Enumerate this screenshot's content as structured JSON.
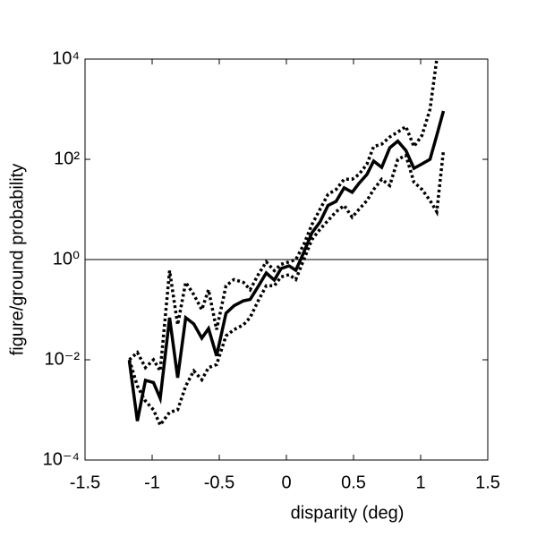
{
  "chart_data": {
    "type": "line",
    "xlabel": "disparity (deg)",
    "ylabel": "figure/ground probability",
    "x": [
      -1.17,
      -1.11,
      -1.05,
      -0.99,
      -0.94,
      -0.87,
      -0.81,
      -0.75,
      -0.69,
      -0.63,
      -0.58,
      -0.52,
      -0.45,
      -0.39,
      -0.32,
      -0.27,
      -0.21,
      -0.15,
      -0.09,
      -0.04,
      0.02,
      0.07,
      0.13,
      0.19,
      0.25,
      0.31,
      0.37,
      0.43,
      0.49,
      0.54,
      0.6,
      0.65,
      0.71,
      0.77,
      0.83,
      0.89,
      0.95,
      1.01,
      1.07,
      1.12,
      1.17
    ],
    "series": [
      {
        "color": "#000000",
        "style": "solid",
        "values": [
          0.0095,
          0.0006,
          0.0039,
          0.0035,
          0.0017,
          0.069,
          0.0044,
          0.069,
          0.052,
          0.027,
          0.042,
          0.012,
          0.085,
          0.12,
          0.15,
          0.16,
          0.29,
          0.54,
          0.39,
          0.66,
          0.75,
          0.61,
          1.4,
          3.4,
          5.6,
          12,
          14.5,
          27,
          22,
          33,
          50,
          92,
          69,
          170,
          230,
          150,
          66,
          81,
          100,
          300,
          920
        ]
      },
      {
        "color": "#000000",
        "style": "dotted",
        "values": [
          0.01,
          0.014,
          0.007,
          0.01,
          0.006,
          0.6,
          0.05,
          0.35,
          0.2,
          0.1,
          0.25,
          0.04,
          0.3,
          0.4,
          0.35,
          0.25,
          0.5,
          0.9,
          0.6,
          0.8,
          0.9,
          1.0,
          2,
          5,
          10,
          20,
          25,
          40,
          40,
          50,
          80,
          180,
          200,
          280,
          350,
          450,
          180,
          300,
          1000,
          10000,
          null
        ]
      },
      {
        "color": "#000000",
        "style": "dotted",
        "values": [
          0.01,
          0.003,
          0.0015,
          0.001,
          0.0005,
          0.0009,
          0.001,
          0.003,
          0.006,
          0.004,
          0.007,
          0.008,
          0.03,
          0.04,
          0.05,
          0.07,
          0.15,
          0.3,
          0.3,
          0.45,
          0.5,
          0.4,
          1,
          2.5,
          4,
          6,
          9,
          12,
          7,
          10,
          15,
          25,
          40,
          30,
          100,
          120,
          35,
          25,
          15,
          9,
          150
        ]
      }
    ],
    "reference_line": 1,
    "xlim": [
      -1.5,
      1.5
    ],
    "xticks": [
      -1.5,
      -1,
      -0.5,
      0,
      0.5,
      1,
      1.5
    ],
    "ylim": [
      0.0001,
      10000
    ],
    "yscale": "log",
    "yticks": [
      {
        "value": 0.0001,
        "label": "10⁻⁴"
      },
      {
        "value": 0.01,
        "label": "10⁻²"
      },
      {
        "value": 1,
        "label": "10⁰"
      },
      {
        "value": 100,
        "label": "10²"
      },
      {
        "value": 10000,
        "label": "10⁴"
      }
    ]
  }
}
